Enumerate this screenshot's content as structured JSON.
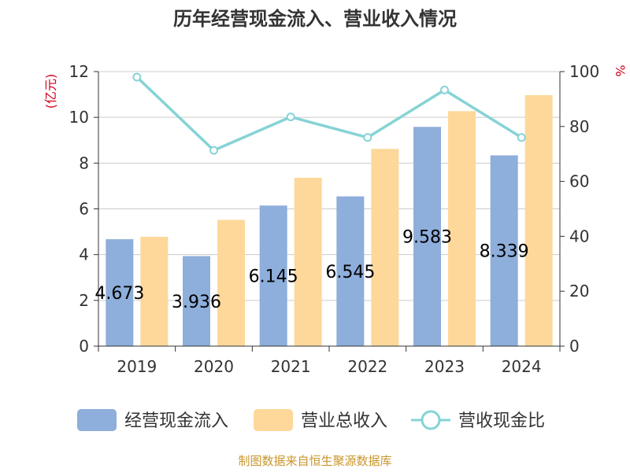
{
  "chart_data": {
    "type": "bar",
    "title": "历年经营现金流入、营业收入情况",
    "categories": [
      "2019",
      "2020",
      "2021",
      "2022",
      "2023",
      "2024"
    ],
    "series": [
      {
        "name": "经营现金流入",
        "kind": "bar",
        "axis": "left",
        "color": "#8eaedb",
        "values": [
          4.673,
          3.936,
          6.145,
          6.545,
          9.583,
          8.339
        ],
        "labels": [
          "4.673",
          "3.936",
          "6.145",
          "6.545",
          "9.583",
          "8.339"
        ]
      },
      {
        "name": "营业总收入",
        "kind": "bar",
        "axis": "left",
        "color": "#fdd89a",
        "values": [
          4.78,
          5.52,
          7.36,
          8.62,
          10.27,
          10.97
        ]
      },
      {
        "name": "营收现金比",
        "kind": "line",
        "axis": "right",
        "color": "#86d3d6",
        "values": [
          98,
          71.3,
          83.5,
          76,
          93.3,
          76
        ]
      }
    ],
    "y_left": {
      "unit": "(亿元)",
      "min": 0,
      "max": 12,
      "ticks": [
        0,
        2,
        4,
        6,
        8,
        10,
        12
      ]
    },
    "y_right": {
      "unit": "%",
      "min": 0,
      "max": 100,
      "ticks": [
        0,
        20,
        40,
        60,
        80,
        100
      ]
    },
    "grid": true,
    "legend": "bottom",
    "source": "制图数据来自恒生聚源数据库"
  }
}
